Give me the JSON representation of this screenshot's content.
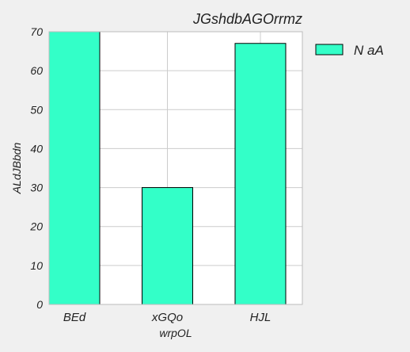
{
  "chart_data": {
    "type": "bar",
    "title": "JGshdbAGOrrmz",
    "xlabel": "wrpOL",
    "ylabel": "ALdJBbdn",
    "categories": [
      "BEd",
      "xGQo",
      "HJL"
    ],
    "series": [
      {
        "name": "N aA",
        "values": [
          70,
          30,
          67
        ]
      }
    ],
    "ylim": [
      0,
      70
    ],
    "yticks": [
      0,
      10,
      20,
      30,
      40,
      50,
      60,
      70
    ],
    "grid": true,
    "legend": "upper-right-outside",
    "colors": {
      "bar": "#33ffc8",
      "edge": "#000000",
      "grid": "#cccccc",
      "plot_background": "#ffffff",
      "figure_background": "#f0f0f0"
    }
  }
}
